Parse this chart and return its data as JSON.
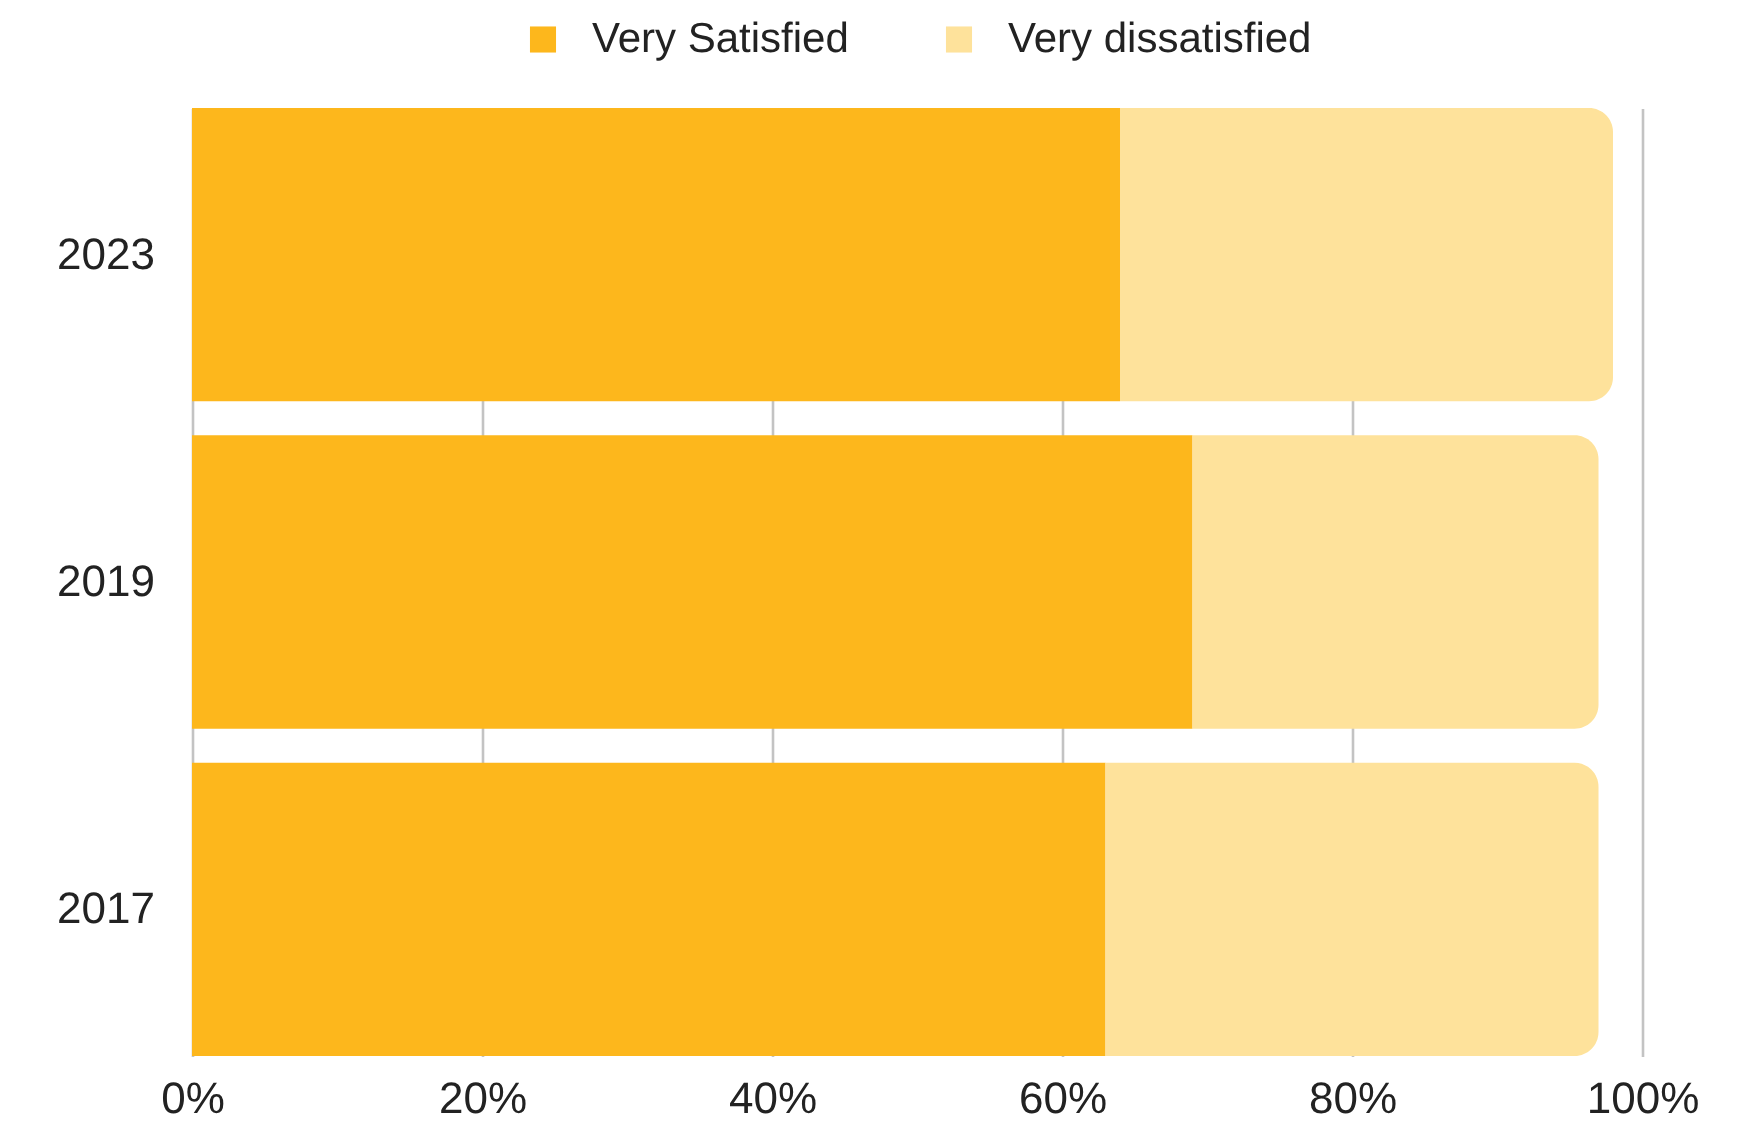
{
  "chart_data": {
    "type": "bar",
    "orientation": "horizontal",
    "stacked": true,
    "categories": [
      "2023",
      "2019",
      "2017"
    ],
    "series": [
      {
        "name": "Very Satisfied",
        "color": "#fdb71c",
        "values": [
          64,
          69,
          63
        ]
      },
      {
        "name": "Very dissatisfied",
        "color": "#fee29b",
        "values": [
          34,
          28,
          34
        ]
      }
    ],
    "xlim": [
      0,
      100
    ],
    "xticks": [
      {
        "value": 0,
        "label": "0%"
      },
      {
        "value": 20,
        "label": "20%"
      },
      {
        "value": 40,
        "label": "40%"
      },
      {
        "value": 60,
        "label": "60%"
      },
      {
        "value": 80,
        "label": "80%"
      },
      {
        "value": 100,
        "label": "100%"
      }
    ],
    "grid": "x",
    "legend": "top"
  }
}
